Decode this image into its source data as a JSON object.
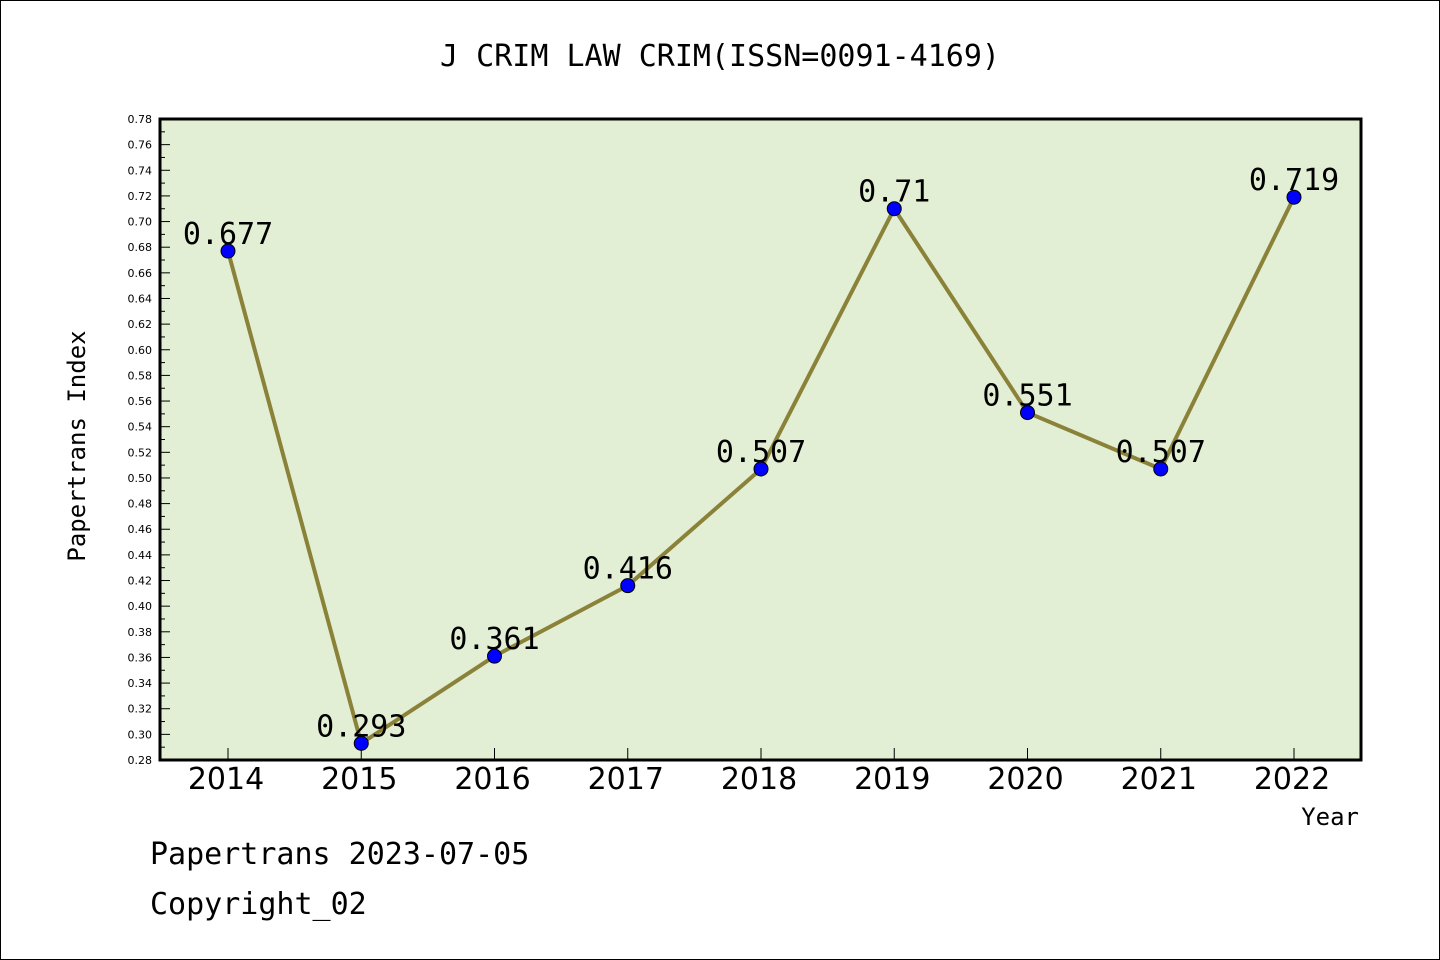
{
  "chart_data": {
    "type": "line",
    "title": "J CRIM LAW CRIM(ISSN=0091-4169)",
    "xlabel": "Year",
    "ylabel": "Papertrans Index",
    "categories": [
      "2014",
      "2015",
      "2016",
      "2017",
      "2018",
      "2019",
      "2020",
      "2021",
      "2022"
    ],
    "values": [
      0.677,
      0.293,
      0.361,
      0.416,
      0.507,
      0.71,
      0.551,
      0.507,
      0.719
    ],
    "data_labels": [
      "0.677",
      "0.293",
      "0.361",
      "0.416",
      "0.507",
      "0.71",
      "0.551",
      "0.507",
      "0.719"
    ],
    "ylim": [
      0.28,
      0.78
    ],
    "yticks": [
      "0.28",
      "0.30",
      "0.32",
      "0.34",
      "0.36",
      "0.38",
      "0.40",
      "0.42",
      "0.44",
      "0.46",
      "0.48",
      "0.50",
      "0.52",
      "0.54",
      "0.56",
      "0.58",
      "0.60",
      "0.62",
      "0.64",
      "0.66",
      "0.68",
      "0.70",
      "0.72",
      "0.74",
      "0.76",
      "0.78"
    ],
    "grid": false,
    "legend": "none",
    "colors": {
      "plot_background": "#e2efd4",
      "line": "#8b8239",
      "marker": "#0000ff"
    }
  },
  "footer": {
    "line1": "Papertrans 2023-07-05",
    "line2": "Copyright_02"
  }
}
